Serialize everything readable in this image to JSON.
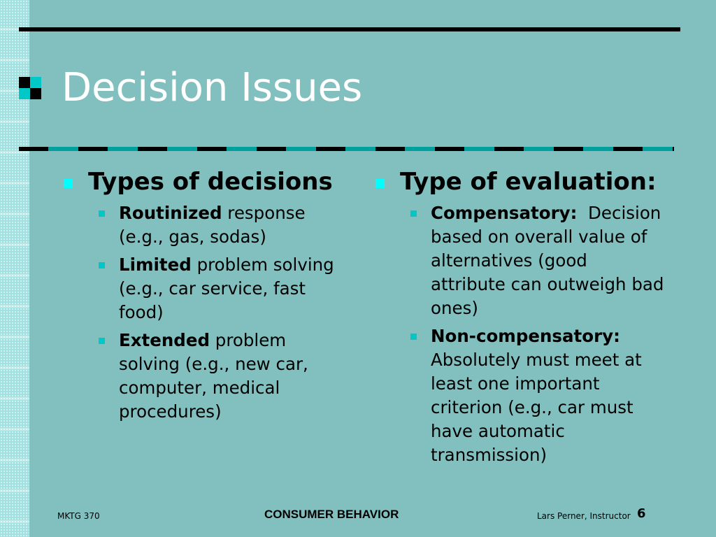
{
  "slide": {
    "title": "Decision Issues",
    "left_column": {
      "heading": "Types of decisions",
      "items": [
        {
          "bold": "Routinized",
          "text": " response (e.g., gas, sodas)"
        },
        {
          "bold": "Limited",
          "text": " problem solving (e.g., car service, fast food)"
        },
        {
          "bold": "Extended",
          "text": " problem solving (e.g., new car, computer, medical procedures)"
        }
      ]
    },
    "right_column": {
      "heading": "Type of evaluation:",
      "items": [
        {
          "bold": "Compensatory:",
          "text": "  Decision based on overall value of alternatives (good attribute can outweigh bad ones)"
        },
        {
          "bold": "Non-compensatory:",
          "text": " Absolutely must meet at least one important criterion (e.g., car must have automatic transmission)"
        }
      ]
    }
  },
  "footer": {
    "course": "MKTG 370",
    "center": "CONSUMER BEHAVIOR",
    "instructor": "Lars Perner, Instructor",
    "page_number": "6"
  },
  "colors": {
    "background": "#82c0c0",
    "title_text": "#ffffff",
    "level1_bullet": "#00ffff",
    "level2_bullet": "#00c8c8",
    "rule": "#000000"
  }
}
